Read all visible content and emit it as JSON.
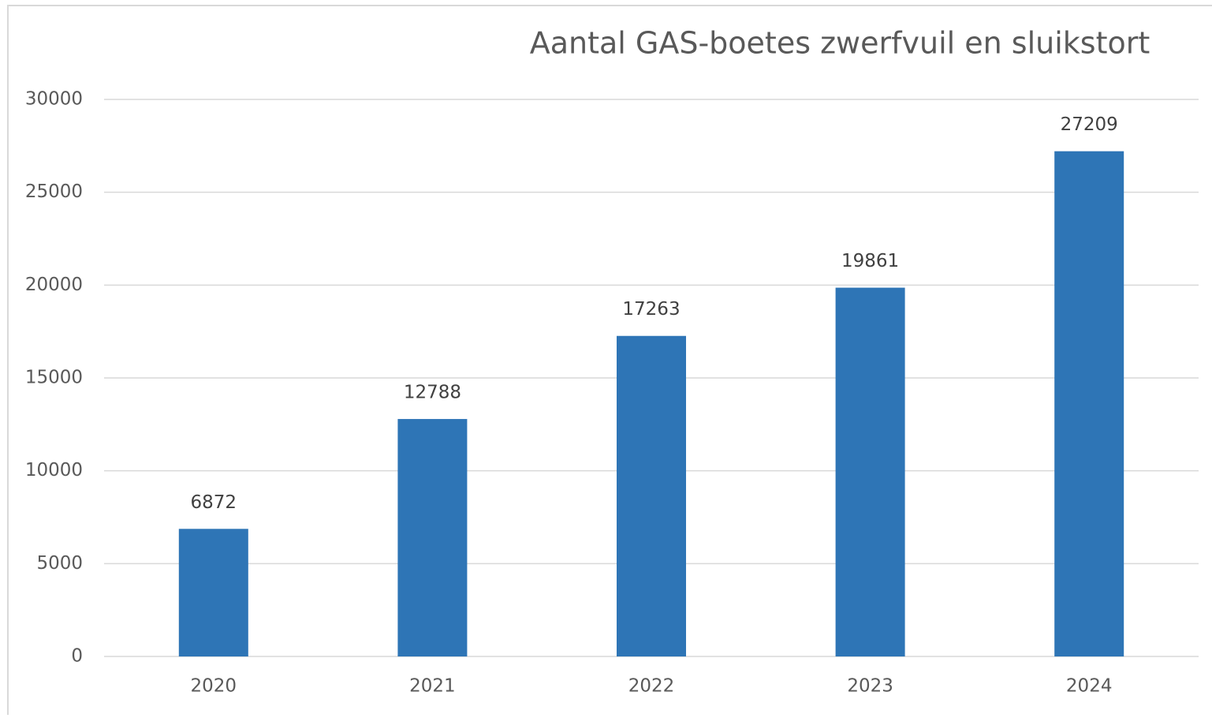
{
  "chart_data": {
    "type": "bar",
    "title": "Aantal GAS-boetes zwerfvuil en sluikstort",
    "categories": [
      "2020",
      "2021",
      "2022",
      "2023",
      "2024"
    ],
    "values": [
      6872,
      12788,
      17263,
      19861,
      27209
    ],
    "color": "#2e75b6",
    "ylim": [
      0,
      30000
    ],
    "yticks": [
      0,
      5000,
      10000,
      15000,
      20000,
      25000,
      30000
    ],
    "grid": true
  }
}
